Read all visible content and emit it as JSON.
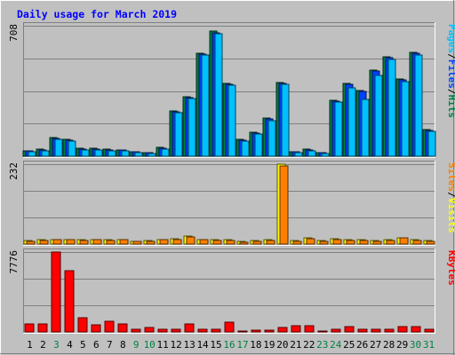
{
  "chart_data": {
    "type": "bar",
    "title": "Daily usage for March 2019",
    "categories": [
      "1",
      "2",
      "3",
      "4",
      "5",
      "6",
      "7",
      "8",
      "9",
      "10",
      "11",
      "12",
      "13",
      "14",
      "15",
      "16",
      "17",
      "18",
      "19",
      "20",
      "21",
      "22",
      "23",
      "24",
      "25",
      "26",
      "27",
      "28",
      "29",
      "30",
      "31"
    ],
    "weekend_days": [
      "3",
      "9",
      "10",
      "16",
      "17",
      "23",
      "24",
      "30",
      "31"
    ],
    "panels": [
      {
        "id": "hits-files-pages",
        "ymax": 708,
        "ymax_label": "708",
        "legend": [
          "Pages",
          "/",
          "Files",
          "/",
          "Hits"
        ],
        "legend_colors": [
          "#00c0ff",
          "#000000",
          "#0040ff",
          "#000000",
          "#008040"
        ],
        "series": [
          {
            "name": "Hits",
            "color": "#008040",
            "values": [
              30,
              40,
              100,
              90,
              45,
              45,
              40,
              35,
              25,
              20,
              50,
              245,
              325,
              560,
              680,
              395,
              90,
              130,
              205,
              400,
              25,
              40,
              20,
              305,
              395,
              355,
              465,
              540,
              420,
              565,
              145
            ]
          },
          {
            "name": "Files",
            "color": "#0040ff",
            "values": [
              28,
              35,
              95,
              85,
              40,
              40,
              35,
              33,
              22,
              18,
              45,
              240,
              320,
              555,
              670,
              390,
              85,
              125,
              200,
              395,
              22,
              36,
              18,
              300,
              390,
              350,
              460,
              535,
              415,
              560,
              140
            ]
          },
          {
            "name": "Pages",
            "color": "#00c0ff",
            "values": [
              25,
              30,
              90,
              80,
              35,
              35,
              30,
              30,
              20,
              15,
              40,
              235,
              315,
              550,
              665,
              385,
              80,
              120,
              195,
              390,
              20,
              30,
              15,
              295,
              370,
              310,
              440,
              525,
              405,
              550,
              135
            ]
          }
        ]
      },
      {
        "id": "visits-sites",
        "ymax": 232,
        "ymax_label": "232",
        "legend": [
          "Sites",
          "/",
          "Visits"
        ],
        "legend_colors": [
          "#ff8000",
          "#000000",
          "#ffff00"
        ],
        "series": [
          {
            "name": "Visits",
            "color": "#ffff00",
            "values": [
              11,
              13,
              14,
              14,
              13,
              14,
              12,
              14,
              9,
              10,
              13,
              16,
              22,
              14,
              13,
              13,
              8,
              10,
              13,
              232,
              11,
              17,
              11,
              15,
              12,
              13,
              10,
              12,
              19,
              12,
              10
            ]
          },
          {
            "name": "Sites",
            "color": "#ff8000",
            "values": [
              9,
              11,
              12,
              12,
              11,
              12,
              10,
              12,
              8,
              9,
              12,
              14,
              20,
              12,
              11,
              11,
              6,
              8,
              11,
              226,
              9,
              15,
              9,
              13,
              10,
              11,
              8,
              10,
              17,
              10,
              8
            ]
          }
        ]
      },
      {
        "id": "kbytes",
        "ymax": 7776,
        "ymax_label": "7776",
        "legend": [
          "KBytes"
        ],
        "legend_colors": [
          "#ff0000"
        ],
        "series": [
          {
            "name": "KBytes",
            "color": "#ff0000",
            "values": [
              800,
              800,
              7776,
              6000,
              1400,
              700,
              1050,
              800,
              300,
              450,
              300,
              300,
              750,
              300,
              300,
              950,
              120,
              130,
              150,
              450,
              600,
              600,
              60,
              250,
              490,
              300,
              250,
              300,
              480,
              480,
              300
            ]
          }
        ]
      }
    ]
  }
}
